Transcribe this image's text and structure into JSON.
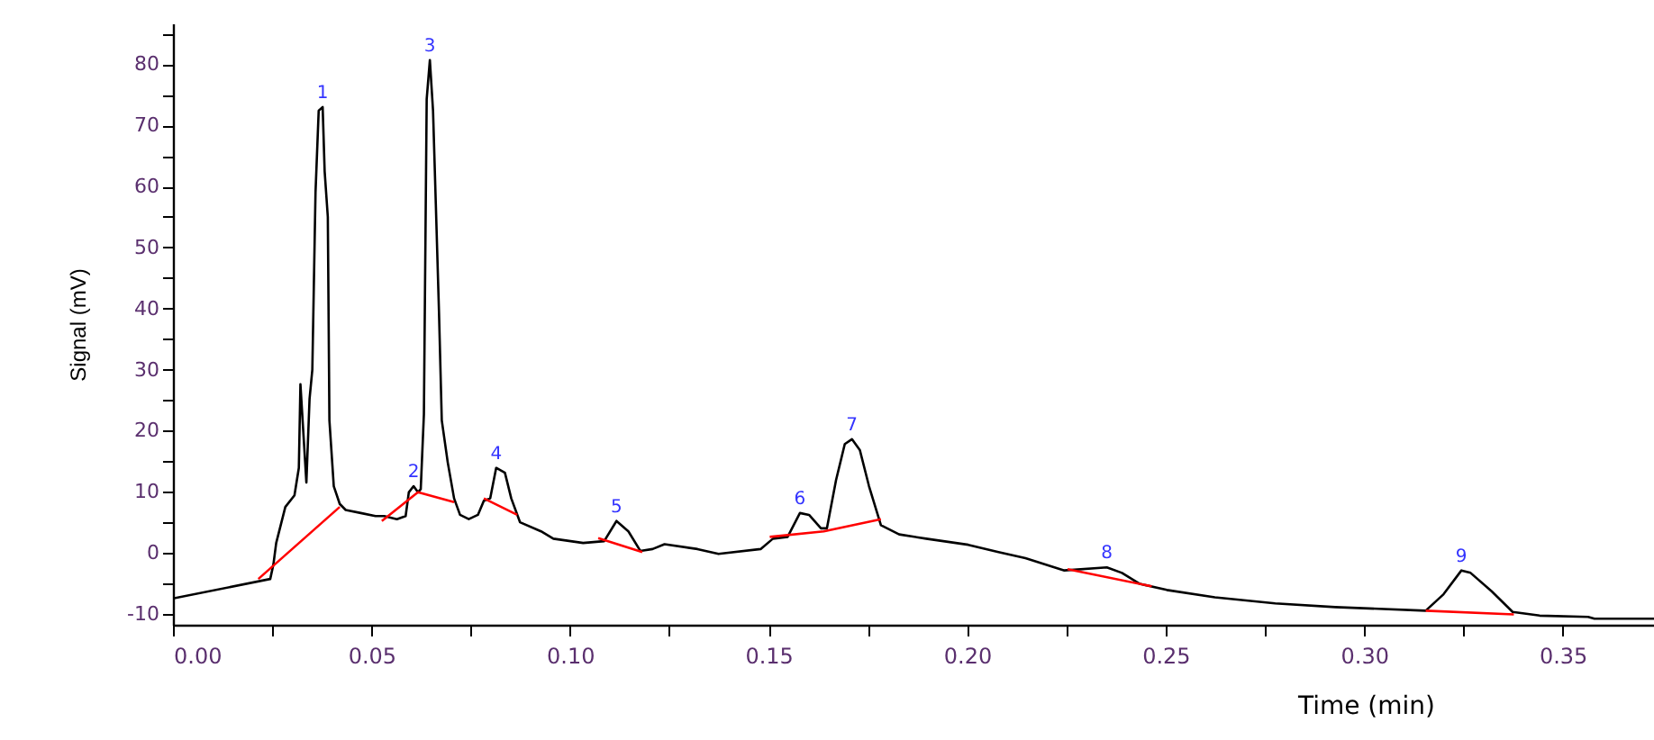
{
  "chart_data": {
    "type": "line",
    "xlabel": "Time (min)",
    "ylabel": "Signal (mV)",
    "xlim": [
      0,
      0.373
    ],
    "ylim": [
      -11.8,
      86.7
    ],
    "xticks": [
      {
        "value": 0,
        "label": "0.00"
      },
      {
        "value": 0.025,
        "label": null
      },
      {
        "value": 0.05,
        "label": "0.05"
      },
      {
        "value": 0.075,
        "label": null
      },
      {
        "value": 0.1,
        "label": "0.10"
      },
      {
        "value": 0.125,
        "label": null
      },
      {
        "value": 0.15,
        "label": "0.15"
      },
      {
        "value": 0.175,
        "label": null
      },
      {
        "value": 0.2,
        "label": "0.20"
      },
      {
        "value": 0.225,
        "label": null
      },
      {
        "value": 0.25,
        "label": "0.25"
      },
      {
        "value": 0.275,
        "label": null
      },
      {
        "value": 0.3,
        "label": "0.30"
      },
      {
        "value": 0.325,
        "label": null
      },
      {
        "value": 0.35,
        "label": "0.35"
      }
    ],
    "yticks": [
      -10,
      {
        "value": -5,
        "label": null
      },
      0,
      {
        "value": 5,
        "label": null
      },
      10,
      {
        "value": 15,
        "label": null
      },
      20,
      {
        "value": 25,
        "label": null
      },
      30,
      {
        "value": 35,
        "label": null
      },
      40,
      {
        "value": 45,
        "label": null
      },
      50,
      {
        "value": 55,
        "label": null
      },
      60,
      {
        "value": 65,
        "label": null
      },
      70,
      {
        "value": 75,
        "label": null
      },
      80,
      {
        "value": 85,
        "label": null
      }
    ],
    "grid": false,
    "series": [
      {
        "color": "#000000",
        "x": [
          0,
          0.0245,
          0.0253,
          0.026,
          0.0283,
          0.0306,
          0.0317,
          0.0321,
          0.0336,
          0.0344,
          0.0351,
          0.0359,
          0.0367,
          0.0377,
          0.0382,
          0.039,
          0.0394,
          0.0405,
          0.042,
          0.0435,
          0.0473,
          0.051,
          0.0532,
          0.0564,
          0.0586,
          0.0594,
          0.0606,
          0.0617,
          0.0624,
          0.0632,
          0.0639,
          0.0647,
          0.0655,
          0.0662,
          0.067,
          0.0677,
          0.0692,
          0.0708,
          0.0723,
          0.0745,
          0.0768,
          0.0783,
          0.0799,
          0.0814,
          0.0836,
          0.0852,
          0.0874,
          0.0927,
          0.0958,
          0.1033,
          0.1086,
          0.1117,
          0.1147,
          0.1177,
          0.1208,
          0.1238,
          0.1321,
          0.1374,
          0.148,
          0.1511,
          0.1548,
          0.1579,
          0.1602,
          0.1632,
          0.1647,
          0.167,
          0.1692,
          0.171,
          0.173,
          0.1753,
          0.1783,
          0.1829,
          0.1897,
          0.2003,
          0.2079,
          0.2147,
          0.2245,
          0.2352,
          0.239,
          0.2435,
          0.2503,
          0.2624,
          0.2776,
          0.2927,
          0.3155,
          0.32,
          0.3245,
          0.3268,
          0.3321,
          0.3374,
          0.3442,
          0.3564,
          0.358,
          0.373
        ],
        "values": [
          -7.5,
          -4.3,
          -1.9,
          1.6,
          7.5,
          9.4,
          13.9,
          27.6,
          11.5,
          25.2,
          30,
          59,
          72.4,
          73,
          62.5,
          55,
          21.7,
          10.9,
          8,
          7,
          6.5,
          6,
          6,
          5.5,
          6,
          9.9,
          10.9,
          9.9,
          10.4,
          22.7,
          74.3,
          80.7,
          72.4,
          57.1,
          39.4,
          21.7,
          14.8,
          8.9,
          6.2,
          5.5,
          6.2,
          8.5,
          8.9,
          13.9,
          13.1,
          8.9,
          5,
          3.5,
          2.3,
          1.6,
          1.9,
          5.2,
          3.5,
          0.3,
          0.6,
          1.4,
          0.6,
          -0.2,
          0.6,
          2.3,
          2.6,
          6.5,
          6.2,
          4,
          4,
          11.9,
          17.8,
          18.6,
          16.8,
          10.9,
          4.5,
          3,
          2.3,
          1.3,
          0.1,
          -0.9,
          -2.9,
          -2.4,
          -3.3,
          -5.1,
          -6.1,
          -7.3,
          -8.3,
          -8.9,
          -9.5,
          -6.8,
          -2.9,
          -3.3,
          -6.3,
          -9.7,
          -10.3,
          -10.5,
          -10.8,
          -10.8
        ]
      },
      {
        "color": "#ff0000",
        "x": [
          0.0215,
          0.042,
          0.0421,
          0.0526,
          0.0617,
          0.0708,
          0.0709,
          0.0783,
          0.0867,
          0.0868,
          0.1071,
          0.1182,
          0.1183,
          0.1503,
          0.1639,
          0.1783,
          0.1784,
          0.2253,
          0.2465,
          0.2466,
          0.3155,
          0.3377
        ],
        "values": [
          -4.3,
          7.5,
          null,
          5.2,
          9.9,
          8.3,
          null,
          8.9,
          6.2,
          null,
          2.4,
          0.1,
          null,
          2.6,
          3.5,
          5.5,
          null,
          -2.7,
          -5.5,
          null,
          -9.5,
          -10.1
        ]
      }
    ],
    "annotations": [
      {
        "text": "1",
        "x": 0.0377,
        "y": 73
      },
      {
        "text": "2",
        "x": 0.0606,
        "y": 10.9
      },
      {
        "text": "3",
        "x": 0.0647,
        "y": 80.7
      },
      {
        "text": "4",
        "x": 0.0814,
        "y": 13.9
      },
      {
        "text": "5",
        "x": 0.1117,
        "y": 5.2
      },
      {
        "text": "6",
        "x": 0.1579,
        "y": 6.5
      },
      {
        "text": "7",
        "x": 0.171,
        "y": 18.6
      },
      {
        "text": "8",
        "x": 0.2352,
        "y": -2.4
      },
      {
        "text": "9",
        "x": 0.3245,
        "y": -2.9
      }
    ]
  }
}
